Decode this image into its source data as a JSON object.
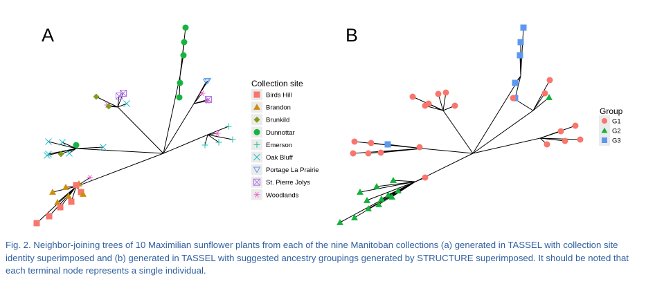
{
  "panel_a": {
    "label": "A",
    "legend_title": "Collection site",
    "legend": [
      {
        "name": "Birds Hill",
        "shape": "square",
        "color": "#f8766d"
      },
      {
        "name": "Brandon",
        "shape": "triangle",
        "color": "#cc8e11"
      },
      {
        "name": "Brunkild",
        "shape": "diamond",
        "color": "#7f9e1a"
      },
      {
        "name": "Dunnottar",
        "shape": "circle",
        "color": "#16b340"
      },
      {
        "name": "Emerson",
        "shape": "plus",
        "color": "#1fbfa6"
      },
      {
        "name": "Oak Bluff",
        "shape": "cross",
        "color": "#1fbcc8"
      },
      {
        "name": "Portage La Prairie",
        "shape": "triangle-down",
        "color": "#5a9bea"
      },
      {
        "name": "St. Pierre Jolys",
        "shape": "boxcross",
        "color": "#b07ae8"
      },
      {
        "name": "Woodlands",
        "shape": "asterisk",
        "color": "#ee64c9"
      }
    ]
  },
  "panel_b": {
    "label": "B",
    "legend_title": "Group",
    "legend": [
      {
        "name": "G1",
        "shape": "circle",
        "color": "#f8766d"
      },
      {
        "name": "G2",
        "shape": "triangle",
        "color": "#13b23a"
      },
      {
        "name": "G3",
        "shape": "square",
        "color": "#5c98ef"
      }
    ]
  },
  "caption": "Fig. 2. Neighbor-joining trees of 10 Maximilian sunflower plants from each of the nine Manitoban collections (a) generated in TASSEL with collection site identity superimposed and (b) generated in TASSEL with suggested ancestry groupings generated by STRUCTURE superimposed. It should be noted that each terminal node represents a single individual."
}
